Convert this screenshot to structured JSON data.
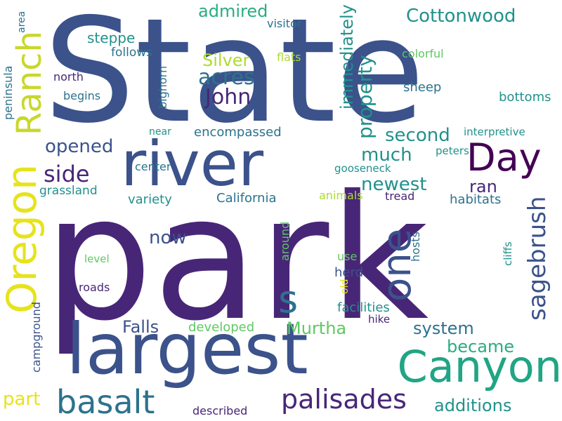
{
  "cloud": {
    "background": "#ffffff",
    "palette": {
      "dark_purple": "#440154",
      "purple": "#482677",
      "indigo": "#3b528b",
      "blue": "#2c728e",
      "teal": "#21918c",
      "green_teal": "#28ae80",
      "green": "#5ec962",
      "yellow_green": "#addc30",
      "yellow": "#e6e31a"
    },
    "words": [
      {
        "id": "state",
        "text": "State",
        "color": "#3b528b"
      },
      {
        "id": "park",
        "text": "park",
        "color": "#482677"
      },
      {
        "id": "largest",
        "text": "largest",
        "color": "#3b528b"
      },
      {
        "id": "river",
        "text": "river",
        "color": "#3b528b"
      },
      {
        "id": "ranch",
        "text": "Ranch",
        "color": "#c8d82a"
      },
      {
        "id": "oregon",
        "text": "Oregon",
        "color": "#e6e31a"
      },
      {
        "id": "canyon",
        "text": "Canyon",
        "color": "#21a584"
      },
      {
        "id": "one",
        "text": "one",
        "color": "#3b528b"
      },
      {
        "id": "day",
        "text": "Day",
        "color": "#440154"
      },
      {
        "id": "basalt",
        "text": "basalt",
        "color": "#2c728e"
      },
      {
        "id": "s",
        "text": "s",
        "color": "#2c728e"
      },
      {
        "id": "palisades",
        "text": "palisades",
        "color": "#482677"
      },
      {
        "id": "sagebrush",
        "text": "sagebrush",
        "color": "#3b528b"
      },
      {
        "id": "side",
        "text": "side",
        "color": "#482677"
      },
      {
        "id": "john",
        "text": "John",
        "color": "#482677"
      },
      {
        "id": "acres",
        "text": "acres",
        "color": "#2c728e"
      },
      {
        "id": "silver",
        "text": "Silver",
        "color": "#addc30"
      },
      {
        "id": "admired",
        "text": "admired",
        "color": "#28ae80"
      },
      {
        "id": "cottonwood",
        "text": "Cottonwood",
        "color": "#21918c"
      },
      {
        "id": "property",
        "text": "property",
        "color": "#21918c"
      },
      {
        "id": "immediately",
        "text": "immediately",
        "color": "#21918c"
      },
      {
        "id": "second",
        "text": "second",
        "color": "#21918c"
      },
      {
        "id": "much",
        "text": "much",
        "color": "#21918c"
      },
      {
        "id": "opened",
        "text": "opened",
        "color": "#3b528b"
      },
      {
        "id": "newest",
        "text": "newest",
        "color": "#21918c"
      },
      {
        "id": "ran",
        "text": "ran",
        "color": "#482677"
      },
      {
        "id": "now",
        "text": "now",
        "color": "#3b528b"
      },
      {
        "id": "falls",
        "text": "Falls",
        "color": "#3b528b"
      },
      {
        "id": "murtha",
        "text": "Murtha",
        "color": "#5ec962"
      },
      {
        "id": "system",
        "text": "system",
        "color": "#2c728e"
      },
      {
        "id": "became",
        "text": "became",
        "color": "#28ae80"
      },
      {
        "id": "additions",
        "text": "additions",
        "color": "#21918c"
      },
      {
        "id": "part",
        "text": "part",
        "color": "#e6e31a"
      },
      {
        "id": "steppe",
        "text": "steppe",
        "color": "#21918c"
      },
      {
        "id": "follows",
        "text": "follows",
        "color": "#2c728e"
      },
      {
        "id": "north",
        "text": "north",
        "color": "#482677"
      },
      {
        "id": "begins",
        "text": "begins",
        "color": "#2c728e"
      },
      {
        "id": "visitor",
        "text": "visitor",
        "color": "#2c728e"
      },
      {
        "id": "flats",
        "text": "flats",
        "color": "#addc30"
      },
      {
        "id": "colorful",
        "text": "colorful",
        "color": "#5ec962"
      },
      {
        "id": "sheep",
        "text": "sheep",
        "color": "#2c728e"
      },
      {
        "id": "bottoms",
        "text": "bottoms",
        "color": "#21918c"
      },
      {
        "id": "interpretive",
        "text": "interpretive",
        "color": "#21918c"
      },
      {
        "id": "peters",
        "text": "peters",
        "color": "#21918c"
      },
      {
        "id": "bighorn",
        "text": "bighorn",
        "color": "#2c728e"
      },
      {
        "id": "near",
        "text": "near",
        "color": "#21918c"
      },
      {
        "id": "encompassed",
        "text": "encompassed",
        "color": "#2c728e"
      },
      {
        "id": "center",
        "text": "center",
        "color": "#2c728e"
      },
      {
        "id": "gooseneck",
        "text": "gooseneck",
        "color": "#21918c"
      },
      {
        "id": "grassland",
        "text": "grassland",
        "color": "#21918c"
      },
      {
        "id": "variety",
        "text": "variety",
        "color": "#21918c"
      },
      {
        "id": "california",
        "text": "California",
        "color": "#2c728e"
      },
      {
        "id": "animals",
        "text": "animals",
        "color": "#addc30"
      },
      {
        "id": "tread",
        "text": "tread",
        "color": "#482677"
      },
      {
        "id": "habitats",
        "text": "habitats",
        "color": "#2c728e"
      },
      {
        "id": "peninsula",
        "text": "peninsula",
        "color": "#2c728e"
      },
      {
        "id": "area",
        "text": "area",
        "color": "#2c728e"
      },
      {
        "id": "level",
        "text": "level",
        "color": "#5ec962"
      },
      {
        "id": "around",
        "text": "around",
        "color": "#5ec962"
      },
      {
        "id": "use",
        "text": "use",
        "color": "#5ec962"
      },
      {
        "id": "herd",
        "text": "herd",
        "color": "#3b528b"
      },
      {
        "id": "hosts",
        "text": "hosts",
        "color": "#2c728e"
      },
      {
        "id": "cliffs",
        "text": "cliffs",
        "color": "#21918c"
      },
      {
        "id": "roads",
        "text": "roads",
        "color": "#482677"
      },
      {
        "id": "old",
        "text": "old",
        "color": "#e6e31a"
      },
      {
        "id": "facilities",
        "text": "facilities",
        "color": "#21918c"
      },
      {
        "id": "hike",
        "text": "hike",
        "color": "#482677"
      },
      {
        "id": "campground",
        "text": "campground",
        "color": "#3b528b"
      },
      {
        "id": "developed",
        "text": "developed",
        "color": "#5ec962"
      },
      {
        "id": "described",
        "text": "described",
        "color": "#482677"
      }
    ]
  }
}
